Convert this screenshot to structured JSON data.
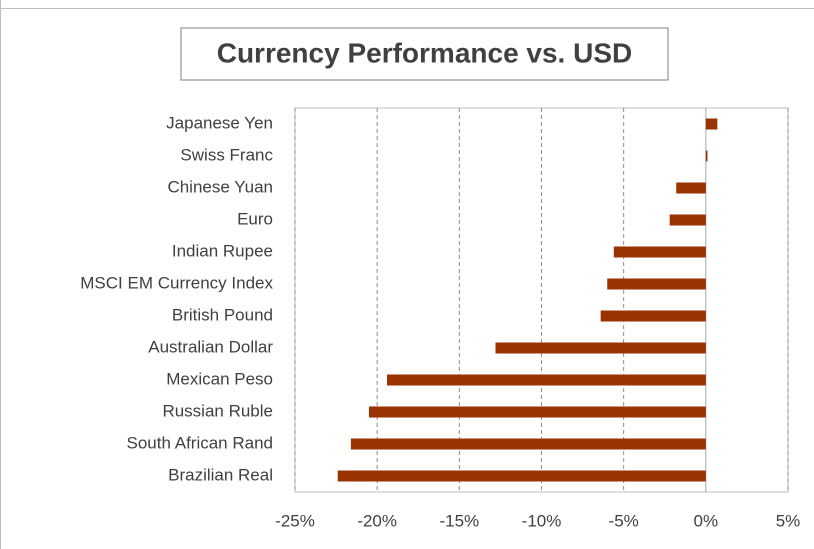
{
  "chart_data": {
    "type": "bar",
    "orientation": "horizontal",
    "title": "Currency Performance vs. USD",
    "categories": [
      "Japanese Yen",
      "Swiss Franc",
      "Chinese Yuan",
      "Euro",
      "Indian Rupee",
      "MSCI EM Currency Index",
      "British Pound",
      "Australian Dollar",
      "Mexican Peso",
      "Russian Ruble",
      "South African Rand",
      "Brazilian Real"
    ],
    "values": [
      0.7,
      0.1,
      -1.8,
      -2.2,
      -5.6,
      -6.0,
      -6.4,
      -12.8,
      -19.4,
      -20.5,
      -21.6,
      -22.4
    ],
    "color": "#993300",
    "xlim": [
      -25,
      5
    ],
    "xticks": [
      {
        "value": -25,
        "label": "-25%"
      },
      {
        "value": -20,
        "label": "-20%"
      },
      {
        "value": -15,
        "label": "-15%"
      },
      {
        "value": -10,
        "label": "-10%"
      },
      {
        "value": -5,
        "label": "-5%"
      },
      {
        "value": 0,
        "label": "0%"
      },
      {
        "value": 5,
        "label": "5%"
      }
    ],
    "grid": true
  }
}
